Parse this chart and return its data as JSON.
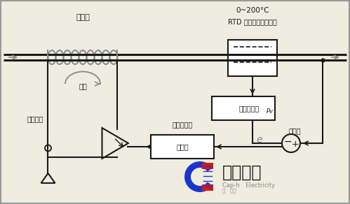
{
  "bg_color": "#eeede0",
  "line_color": "#1a1a1a",
  "gray_color": "#888888",
  "dark_color": "#333333",
  "blue_color": "#1a35cc",
  "red_color": "#cc1a1a",
  "labels": {
    "heater": "加热器",
    "rtd_range": "0~200°C",
    "rtd_label": "RTD 电阱式温度传感器",
    "current": "电流",
    "control_element": "控制元件",
    "correction": "修正偏移量",
    "controller": "控制器",
    "amplifier": "信号放大器",
    "pv_label": "Pv",
    "current_value": "当前値",
    "e_label": "e",
    "company_cn": "容感电气",
    "company_en": "Cap-h  Electricity",
    "cap_sub": "内  理。",
    "minus": "−",
    "plus": "+"
  },
  "figsize": [
    4.99,
    2.92
  ],
  "dpi": 100
}
